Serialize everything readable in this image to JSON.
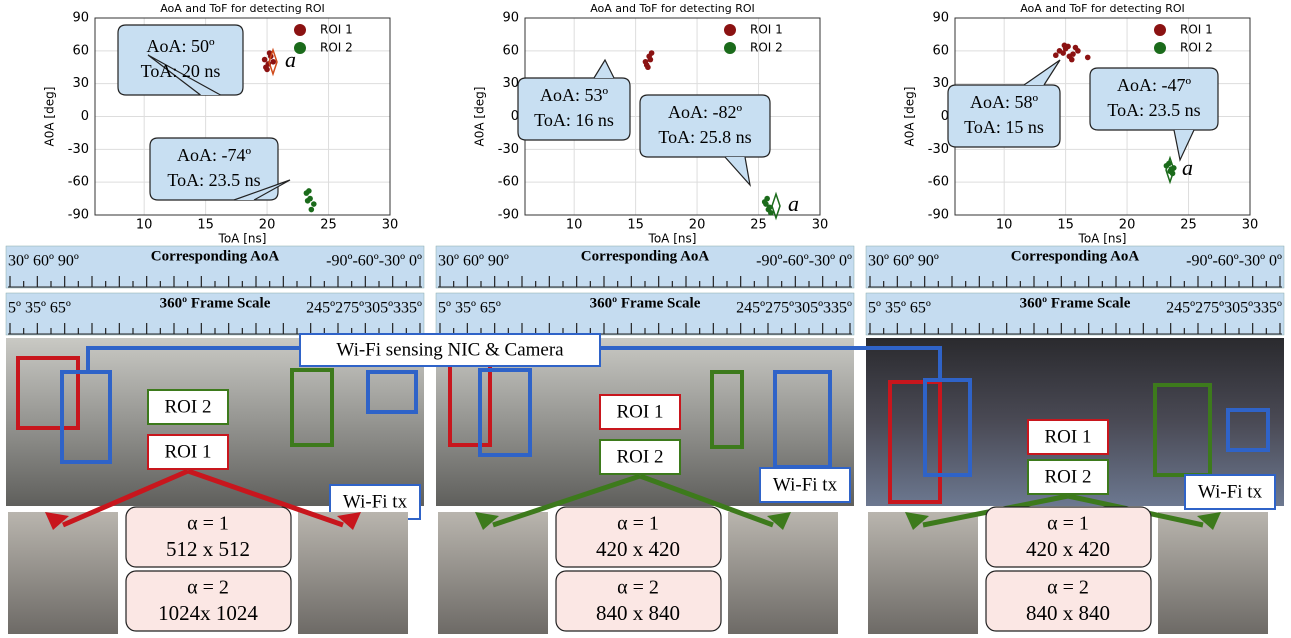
{
  "chart_data": [
    {
      "type": "scatter",
      "title": "AoA and ToF for detecting ROI",
      "x_label": "ToA [ns]",
      "y_label": "A0A [deg]",
      "xlim": [
        6,
        30
      ],
      "xticks": [
        10,
        15,
        20,
        25,
        30
      ],
      "ylim": [
        -90,
        90
      ],
      "yticks": [
        -90,
        -60,
        -30,
        0,
        30,
        60,
        90
      ],
      "legend": "upper right",
      "series": [
        {
          "name": "ROI 1",
          "color": "#8b1212",
          "x": [
            19.8,
            20.1,
            20.3,
            19.9,
            20.5,
            20.2,
            20.0
          ],
          "values": [
            52,
            48,
            55,
            45,
            50,
            58,
            43
          ]
        },
        {
          "name": "ROI 2",
          "color": "#1b6b1b",
          "x": [
            23.2,
            23.5,
            23.8,
            23.4,
            23.6,
            23.3
          ],
          "values": [
            -70,
            -75,
            -80,
            -68,
            -85,
            -77
          ]
        }
      ],
      "annotations": [
        "AoA: 50º",
        "ToA: 20 ns",
        "AoA: -74º",
        "ToA: 23.5 ns",
        "a"
      ]
    },
    {
      "type": "scatter",
      "title": "AoA and ToF for detecting ROI",
      "x_label": "ToA [ns]",
      "y_label": "A0A [deg]",
      "xlim": [
        6,
        30
      ],
      "xticks": [
        10,
        15,
        20,
        25,
        30
      ],
      "ylim": [
        -90,
        90
      ],
      "yticks": [
        -90,
        -60,
        -30,
        0,
        30,
        60,
        90
      ],
      "legend": "upper right",
      "series": [
        {
          "name": "ROI 1",
          "color": "#8b1212",
          "x": [
            15.8,
            16.1,
            16.3,
            15.9,
            16.2,
            16.0
          ],
          "values": [
            50,
            55,
            58,
            47,
            52,
            45
          ]
        },
        {
          "name": "ROI 2",
          "color": "#1b6b1b",
          "x": [
            25.5,
            25.8,
            26.0,
            25.6,
            25.9,
            25.7
          ],
          "values": [
            -78,
            -85,
            -88,
            -80,
            -83,
            -75
          ]
        }
      ],
      "annotations": [
        "AoA: 53º",
        "ToA: 16 ns",
        "AoA: -82º",
        "ToA: 25.8 ns",
        "a"
      ]
    },
    {
      "type": "scatter",
      "title": "AoA and ToF for detecting ROI",
      "x_label": "ToA [ns]",
      "y_label": "A0A [deg]",
      "xlim": [
        6,
        30
      ],
      "xticks": [
        10,
        15,
        20,
        25,
        30
      ],
      "ylim": [
        -90,
        90
      ],
      "yticks": [
        -90,
        -60,
        -30,
        0,
        30,
        60,
        90
      ],
      "legend": "upper right",
      "series": [
        {
          "name": "ROI 1",
          "color": "#8b1212",
          "x": [
            14.5,
            15.0,
            15.3,
            14.8,
            15.6,
            16.0,
            14.2,
            15.2,
            16.8,
            15.5,
            14.9,
            15.8
          ],
          "values": [
            60,
            62,
            55,
            58,
            57,
            60,
            56,
            64,
            54,
            52,
            65,
            63
          ]
        },
        {
          "name": "ROI 2",
          "color": "#1b6b1b",
          "x": [
            23.2,
            23.5,
            23.8,
            23.4,
            23.7,
            23.6
          ],
          "values": [
            -45,
            -50,
            -47,
            -43,
            -52,
            -48
          ]
        }
      ],
      "annotations": [
        "AoA: 58º",
        "ToA: 15 ns",
        "AoA: -47º",
        "ToA: 23.5 ns",
        "a"
      ]
    }
  ],
  "shared_label": "Wi-Fi sensing NIC & Camera",
  "panels": [
    {
      "aoa_scale": {
        "title": "Corresponding AoA",
        "left": "30º 60º 90º",
        "right": "-90º-60º-30º 0º"
      },
      "frame_scale": {
        "title": "360º Frame Scale",
        "left": "5º 35º 65º",
        "right": "245º275º305º335º"
      },
      "labels": [
        "ROI 2",
        "ROI 1",
        "Wi-Fi tx"
      ],
      "resolutions": [
        {
          "alpha": "α = 1",
          "size": "512 x 512"
        },
        {
          "alpha": "α = 2",
          "size": "1024x 1024"
        }
      ]
    },
    {
      "aoa_scale": {
        "title": "Corresponding AoA",
        "left": "30º 60º 90º",
        "right": "-90º-60º-30º 0º"
      },
      "frame_scale": {
        "title": "360º Frame Scale",
        "left": "5º 35º 65º",
        "right": "245º275º305º335º"
      },
      "labels": [
        "ROI 1",
        "ROI 2",
        "Wi-Fi tx"
      ],
      "resolutions": [
        {
          "alpha": "α = 1",
          "size": "420 x 420"
        },
        {
          "alpha": "α = 2",
          "size": "840 x 840"
        }
      ]
    },
    {
      "aoa_scale": {
        "title": "Corresponding AoA",
        "left": "30º 60º 90º",
        "right": "-90º-60º-30º 0º"
      },
      "frame_scale": {
        "title": "360º Frame Scale",
        "left": "5º 35º 65º",
        "right": "245º275º305º335º"
      },
      "labels": [
        "ROI 1",
        "ROI 2",
        "Wi-Fi tx"
      ],
      "resolutions": [
        {
          "alpha": "α = 1",
          "size": "420 x 420"
        },
        {
          "alpha": "α = 2",
          "size": "840 x 840"
        }
      ]
    }
  ]
}
